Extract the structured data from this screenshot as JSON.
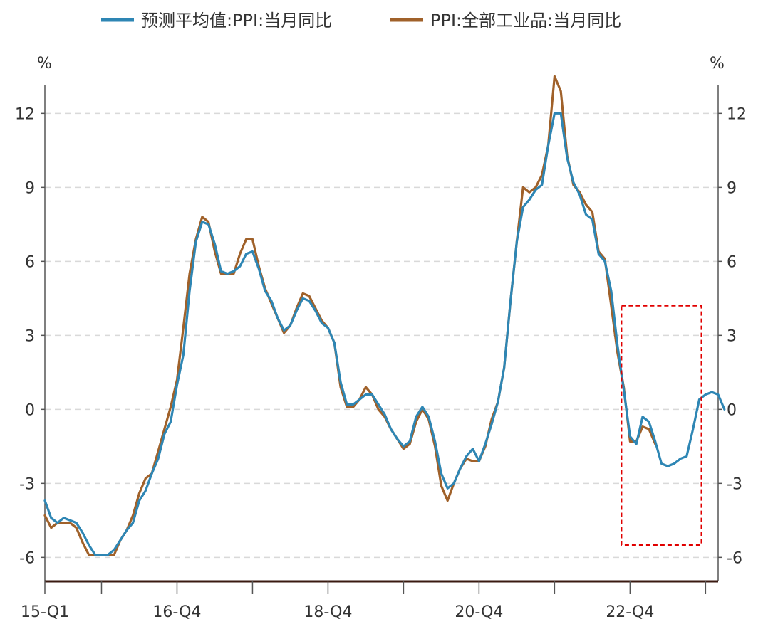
{
  "chart_data": {
    "type": "line",
    "legend": [
      "预测平均值:PPI:当月同比",
      "PPI:全部工业品:当月同比"
    ],
    "legend_position": "top",
    "y_unit_left": "%",
    "y_unit_right": "%",
    "ylim": [
      -7,
      14
    ],
    "yticks": [
      -6,
      -3,
      0,
      3,
      6,
      9,
      12
    ],
    "grid": true,
    "x_start": "2015-01",
    "x_end": "2023-12",
    "xticks": [
      {
        "label": "15-Q1",
        "month": "2015-01"
      },
      {
        "label": "16-Q4",
        "month": "2016-10"
      },
      {
        "label": "18-Q4",
        "month": "2018-10"
      },
      {
        "label": "20-Q4",
        "month": "2020-10"
      },
      {
        "label": "22-Q4",
        "month": "2022-10"
      }
    ],
    "minor_ticks": [
      "2015-10",
      "2017-10",
      "2019-10",
      "2021-10",
      "2023-10"
    ],
    "highlight_box": {
      "from": "2022-10",
      "to": "2023-09",
      "y_from": -5.5,
      "y_to": 4.2,
      "style": "red-dashed"
    },
    "series": [
      {
        "name": "预测平均值:PPI:当月同比",
        "color": "#2e86b4",
        "start": "2015-01",
        "values": [
          -3.7,
          -4.4,
          -4.6,
          -4.4,
          -4.5,
          -4.6,
          -5.0,
          -5.5,
          -5.9,
          -5.9,
          -5.9,
          -5.7,
          -5.3,
          -4.9,
          -4.6,
          -3.7,
          -3.3,
          -2.6,
          -2.0,
          -1.0,
          -0.5,
          1.0,
          2.2,
          4.8,
          6.8,
          7.6,
          7.5,
          6.7,
          5.6,
          5.5,
          5.6,
          5.8,
          6.3,
          6.4,
          5.7,
          4.8,
          4.4,
          3.7,
          3.2,
          3.4,
          4.0,
          4.5,
          4.4,
          4.0,
          3.5,
          3.3,
          2.7,
          1.1,
          0.2,
          0.2,
          0.4,
          0.6,
          0.6,
          0.2,
          -0.2,
          -0.8,
          -1.2,
          -1.5,
          -1.3,
          -0.3,
          0.1,
          -0.3,
          -1.3,
          -2.6,
          -3.2,
          -3.0,
          -2.4,
          -1.9,
          -1.6,
          -2.1,
          -1.4,
          -0.6,
          0.3,
          1.7,
          4.4,
          6.8,
          8.2,
          8.5,
          8.9,
          9.1,
          10.7,
          12.0,
          12.0,
          10.2,
          9.2,
          8.7,
          7.9,
          7.7,
          6.3,
          6.0,
          4.8,
          2.6,
          0.8,
          -1.1,
          -1.4,
          -0.3,
          -0.5,
          -1.3,
          -2.2,
          -2.3,
          -2.2,
          -2.0,
          -1.9,
          -0.8,
          0.4,
          0.6,
          0.7,
          0.6,
          0.0
        ]
      },
      {
        "name": "PPI:全部工业品:当月同比",
        "color": "#a0612a",
        "start": "2015-01",
        "values": [
          -4.3,
          -4.8,
          -4.6,
          -4.6,
          -4.6,
          -4.8,
          -5.4,
          -5.9,
          -5.9,
          -5.9,
          -5.9,
          -5.9,
          -5.3,
          -4.9,
          -4.3,
          -3.4,
          -2.8,
          -2.6,
          -1.7,
          -0.8,
          0.1,
          1.2,
          3.3,
          5.5,
          6.9,
          7.8,
          7.6,
          6.4,
          5.5,
          5.5,
          5.5,
          6.3,
          6.9,
          6.9,
          5.8,
          4.9,
          4.3,
          3.7,
          3.1,
          3.4,
          4.1,
          4.7,
          4.6,
          4.1,
          3.6,
          3.3,
          2.7,
          0.9,
          0.1,
          0.1,
          0.4,
          0.9,
          0.6,
          0.0,
          -0.3,
          -0.8,
          -1.2,
          -1.6,
          -1.4,
          -0.5,
          0.0,
          -0.4,
          -1.5,
          -3.1,
          -3.7,
          -3.0,
          -2.4,
          -2.0,
          -2.1,
          -2.1,
          -1.5,
          -0.4,
          0.3,
          1.7,
          4.4,
          6.8,
          9.0,
          8.8,
          9.0,
          9.5,
          10.7,
          13.5,
          12.9,
          10.3,
          9.1,
          8.8,
          8.3,
          8.0,
          6.4,
          6.1,
          4.2,
          2.3,
          0.9,
          -1.3,
          -1.3,
          -0.7,
          -0.8,
          -1.4
        ]
      }
    ]
  }
}
